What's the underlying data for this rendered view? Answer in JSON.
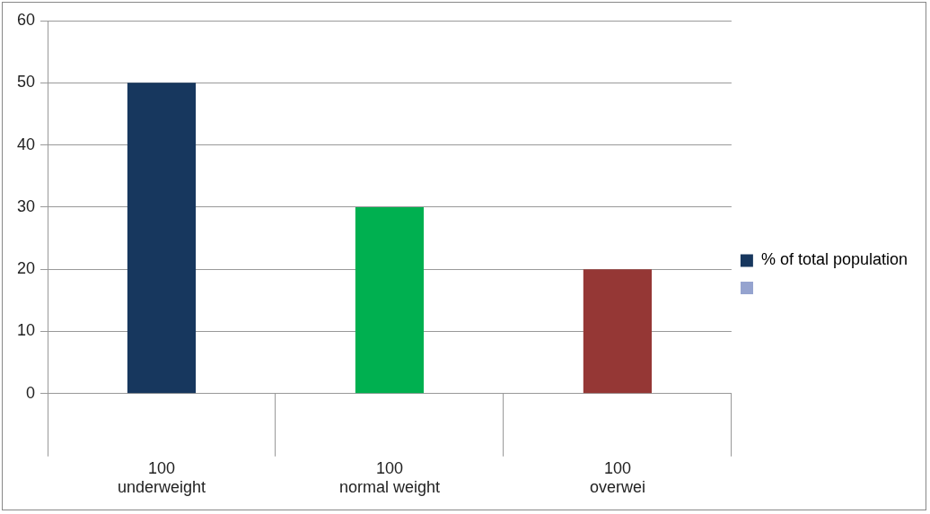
{
  "chart_data": {
    "type": "bar",
    "categories": [
      "100\nunderweight",
      "100\nnormal weight",
      "100\noverwei"
    ],
    "series": [
      {
        "name": "% of total population",
        "color": "#17375e",
        "colors": [
          "#17375e",
          "#00b050",
          "#953735"
        ],
        "values": [
          50,
          30,
          20
        ]
      }
    ],
    "ylim": [
      0,
      60
    ],
    "yticks": [
      0,
      10,
      20,
      30,
      40,
      50,
      60
    ],
    "grid": "y",
    "legend": "right"
  }
}
